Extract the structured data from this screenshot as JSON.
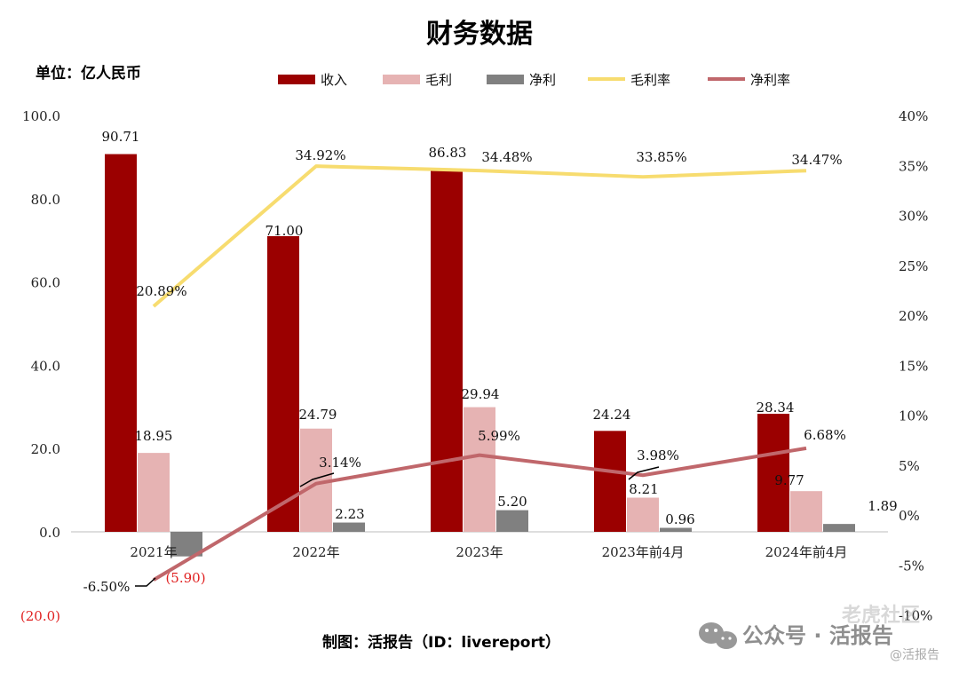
{
  "chart_data": {
    "type": "bar",
    "title": "财务数据",
    "unit_label": "单位：亿人民币",
    "categories": [
      "2021年",
      "2022年",
      "2023年",
      "2023年前4月",
      "2024年前4月"
    ],
    "bar_series": [
      {
        "name": "收入",
        "color": "#9B0000",
        "values": [
          90.71,
          71.0,
          86.83,
          24.24,
          28.34
        ],
        "labels": [
          "90.71",
          "71.00",
          "86.83",
          "24.24",
          "28.34"
        ]
      },
      {
        "name": "毛利",
        "color": "#E6B3B3",
        "values": [
          18.95,
          24.79,
          29.94,
          8.21,
          9.77
        ],
        "labels": [
          "18.95",
          "24.79",
          "29.94",
          "8.21",
          "9.77"
        ]
      },
      {
        "name": "净利",
        "color": "#808080",
        "values": [
          -5.9,
          2.23,
          5.2,
          0.96,
          1.89
        ],
        "labels": [
          "(5.90)",
          "2.23",
          "5.20",
          "0.96",
          "1.89"
        ]
      }
    ],
    "line_series": [
      {
        "name": "毛利率",
        "color": "#F7DC6F",
        "values": [
          20.89,
          34.92,
          34.48,
          33.85,
          34.47
        ],
        "labels": [
          "20.89%",
          "34.92%",
          "34.48%",
          "33.85%",
          "34.47%"
        ]
      },
      {
        "name": "净利率",
        "color": "#C0676B",
        "values": [
          -6.5,
          3.14,
          5.99,
          3.98,
          6.68
        ],
        "labels": [
          "-6.50%",
          "3.14%",
          "5.99%",
          "3.98%",
          "6.68%"
        ]
      }
    ],
    "y_left": {
      "ylim": [
        -20,
        100
      ],
      "ticks": [
        "(20.0)",
        "0.0",
        "20.0",
        "40.0",
        "60.0",
        "80.0",
        "100.0"
      ]
    },
    "y_right": {
      "ylim": [
        -10,
        40
      ],
      "ticks": [
        "-10%",
        "-5%",
        "0%",
        "5%",
        "10%",
        "15%",
        "20%",
        "25%",
        "30%",
        "35%",
        "40%"
      ]
    },
    "legend_position": "top",
    "negative_label_color": "#E02020",
    "credit": "制图：活报告（ID：livereport）",
    "watermark": [
      "公众号 · 活报告",
      "老虎社区",
      "@活报告"
    ]
  }
}
